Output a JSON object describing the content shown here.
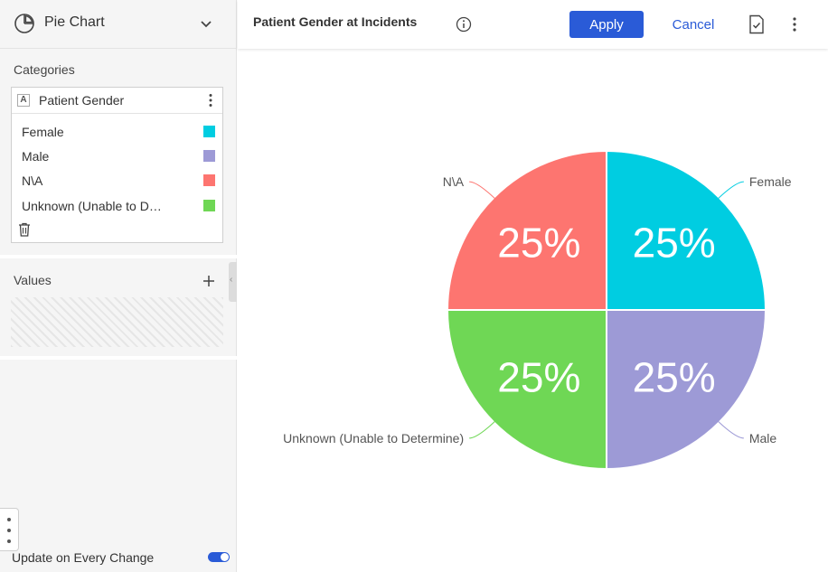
{
  "sidebar": {
    "chart_type": "Pie Chart",
    "categories_label": "Categories",
    "field": {
      "type_icon": "A",
      "name": "Patient Gender"
    },
    "legend": [
      {
        "label": "Female",
        "color": "#00cde1"
      },
      {
        "label": "Male",
        "color": "#9d9ad6"
      },
      {
        "label": "N\\A",
        "color": "#fd7570"
      },
      {
        "label": "Unknown (Unable to D…",
        "color": "#6fd755"
      }
    ],
    "values_label": "Values",
    "update_label": "Update on Every Change",
    "update_toggle": true
  },
  "header": {
    "title": "Patient Gender at Incidents",
    "apply_label": "Apply",
    "cancel_label": "Cancel"
  },
  "icons": {
    "chart_type": "pie-chart-icon",
    "dropdown": "chevron-down-icon",
    "field_menu": "kebab-icon",
    "delete": "trash-icon",
    "add_value": "plus-icon",
    "info": "info-icon",
    "save": "save-icon",
    "more": "kebab-icon"
  },
  "chart_data": {
    "type": "pie",
    "title": "",
    "slices": [
      {
        "label": "Female",
        "value": 25,
        "display": "25%",
        "color": "#00cde1"
      },
      {
        "label": "Male",
        "value": 25,
        "display": "25%",
        "color": "#9d9ad6"
      },
      {
        "label": "Unknown (Unable to Determine)",
        "value": 25,
        "display": "25%",
        "color": "#6fd755"
      },
      {
        "label": "N\\A",
        "value": 25,
        "display": "25%",
        "color": "#fd7570"
      }
    ],
    "start": "top, clockwise",
    "legend": "none"
  }
}
